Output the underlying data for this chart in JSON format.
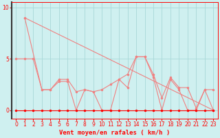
{
  "bg_color": "#cff0f0",
  "grid_color": "#a8d8d8",
  "line_color_light": "#f08080",
  "line_color_dark": "#ff0000",
  "xlabel": "Vent moyen/en rafales ( km/h )",
  "ylabel_ticks": [
    0,
    5,
    10
  ],
  "xlim": [
    -0.5,
    23.5
  ],
  "ylim": [
    -0.8,
    10.5
  ],
  "xticks": [
    0,
    1,
    2,
    3,
    4,
    5,
    6,
    7,
    8,
    9,
    10,
    11,
    12,
    13,
    14,
    15,
    16,
    17,
    18,
    19,
    20,
    21,
    22,
    23
  ],
  "line1_x": [
    1,
    23
  ],
  "line1_y": [
    9.0,
    0.0
  ],
  "line2_x": [
    0,
    1,
    2,
    3,
    4,
    5,
    6,
    7,
    8,
    9,
    10,
    11,
    12,
    13,
    14,
    15,
    16,
    17,
    18,
    19,
    20,
    21,
    22,
    23
  ],
  "line2_y": [
    5.0,
    5.0,
    5.0,
    2.0,
    2.0,
    3.0,
    3.0,
    1.8,
    2.0,
    1.8,
    2.0,
    2.5,
    3.0,
    2.2,
    5.2,
    5.2,
    3.5,
    1.2,
    3.2,
    2.2,
    2.2,
    0.2,
    2.0,
    2.0
  ],
  "line3_x": [
    1,
    3,
    4,
    5,
    6,
    7,
    8,
    9,
    10,
    11,
    12,
    13,
    14,
    15,
    16,
    17,
    18,
    19,
    20,
    21,
    22,
    23
  ],
  "line3_y": [
    9.0,
    2.0,
    2.0,
    2.8,
    2.8,
    0.0,
    2.0,
    1.8,
    0.0,
    0.0,
    3.0,
    3.5,
    5.2,
    5.2,
    3.2,
    0.0,
    3.0,
    2.0,
    0.0,
    0.0,
    2.0,
    0.0
  ],
  "line4_x": [
    0,
    1,
    2,
    3,
    4,
    5,
    6,
    7,
    8,
    9,
    10,
    11,
    12,
    13,
    14,
    15,
    16,
    17,
    18,
    19,
    20,
    21,
    22,
    23
  ],
  "line4_y": [
    0,
    0,
    0,
    0,
    0,
    0,
    0,
    0,
    0,
    0,
    0,
    0,
    0,
    0,
    0,
    0,
    0,
    0,
    0,
    0,
    0,
    0,
    0,
    0
  ],
  "xlabel_fontsize": 6.5,
  "tick_fontsize": 5.5,
  "marker_size": 2.0,
  "lw": 0.8
}
